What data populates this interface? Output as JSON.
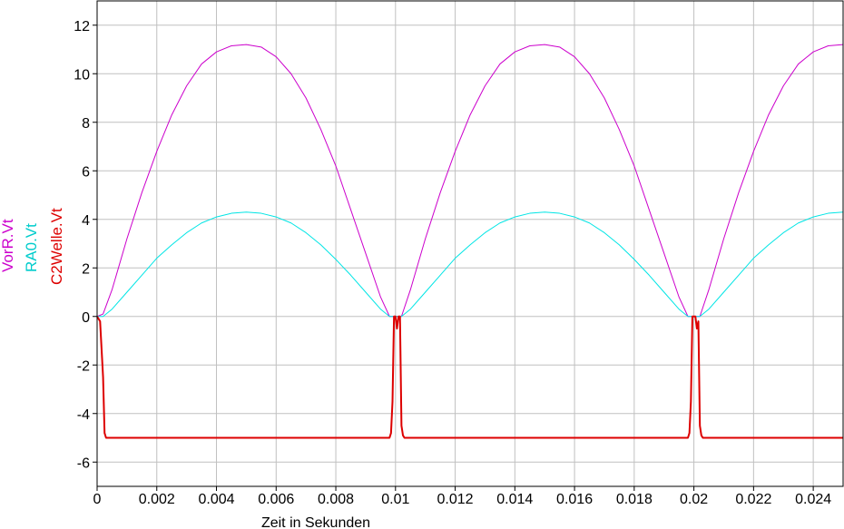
{
  "chart_data": {
    "type": "line",
    "title": "",
    "xlabel": "Zeit in Sekunden",
    "ylabels": [
      "VorR.Vt",
      "RA0.Vt",
      "C2Welle.Vt"
    ],
    "xlim": [
      0,
      0.025
    ],
    "ylim": [
      -7,
      13
    ],
    "grid": true,
    "xticks": [
      "0",
      "0.002",
      "0.004",
      "0.006",
      "0.008",
      "0.01",
      "0.012",
      "0.014",
      "0.016",
      "0.018",
      "0.02",
      "0.022",
      "0.024"
    ],
    "yticks": [
      "-6",
      "-4",
      "-2",
      "0",
      "2",
      "4",
      "6",
      "8",
      "10",
      "12"
    ],
    "series": [
      {
        "name": "VorR.Vt",
        "color": "#cc00cc",
        "x": [
          0,
          0.0002,
          0.0005,
          0.001,
          0.0015,
          0.002,
          0.0025,
          0.003,
          0.0035,
          0.004,
          0.0045,
          0.005,
          0.0055,
          0.006,
          0.0065,
          0.007,
          0.0075,
          0.008,
          0.0085,
          0.009,
          0.0095,
          0.0098,
          0.01,
          0.0102,
          0.0105,
          0.011,
          0.0115,
          0.012,
          0.0125,
          0.013,
          0.0135,
          0.014,
          0.0145,
          0.015,
          0.0155,
          0.016,
          0.0165,
          0.017,
          0.0175,
          0.018,
          0.0185,
          0.019,
          0.0195,
          0.0198,
          0.02,
          0.0202,
          0.0205,
          0.021,
          0.0215,
          0.022,
          0.0225,
          0.023,
          0.0235,
          0.024,
          0.0245,
          0.025
        ],
        "y": [
          0,
          0.1,
          1.1,
          3.2,
          5.1,
          6.8,
          8.3,
          9.5,
          10.4,
          10.9,
          11.15,
          11.2,
          11.1,
          10.7,
          10.0,
          9.0,
          7.7,
          6.2,
          4.4,
          2.6,
          0.8,
          0.0,
          0.0,
          0.0,
          1.1,
          3.2,
          5.1,
          6.8,
          8.3,
          9.5,
          10.4,
          10.9,
          11.15,
          11.2,
          11.1,
          10.7,
          10.0,
          9.0,
          7.7,
          6.2,
          4.4,
          2.6,
          0.8,
          0.0,
          0.0,
          0.0,
          1.1,
          3.2,
          5.1,
          6.8,
          8.3,
          9.5,
          10.4,
          10.9,
          11.15,
          11.2
        ]
      },
      {
        "name": "RA0.Vt",
        "color": "#00e5e5",
        "x": [
          0,
          0.0002,
          0.0005,
          0.001,
          0.0015,
          0.002,
          0.0025,
          0.003,
          0.0035,
          0.004,
          0.0045,
          0.005,
          0.0055,
          0.006,
          0.0065,
          0.007,
          0.0075,
          0.008,
          0.0085,
          0.009,
          0.0095,
          0.0098,
          0.01,
          0.0102,
          0.0105,
          0.011,
          0.0115,
          0.012,
          0.0125,
          0.013,
          0.0135,
          0.014,
          0.0145,
          0.015,
          0.0155,
          0.016,
          0.0165,
          0.017,
          0.0175,
          0.018,
          0.0185,
          0.019,
          0.0195,
          0.0198,
          0.02,
          0.0202,
          0.0205,
          0.021,
          0.0215,
          0.022,
          0.0225,
          0.023,
          0.0235,
          0.024,
          0.0245,
          0.025
        ],
        "y": [
          0,
          0.0,
          0.3,
          1.0,
          1.7,
          2.4,
          2.95,
          3.45,
          3.85,
          4.1,
          4.25,
          4.3,
          4.25,
          4.1,
          3.85,
          3.45,
          2.95,
          2.35,
          1.7,
          1.0,
          0.3,
          0.0,
          0.0,
          0.0,
          0.3,
          1.0,
          1.7,
          2.4,
          2.95,
          3.45,
          3.85,
          4.1,
          4.25,
          4.3,
          4.25,
          4.1,
          3.85,
          3.45,
          2.95,
          2.35,
          1.7,
          1.0,
          0.3,
          0.0,
          0.0,
          0.0,
          0.3,
          1.0,
          1.7,
          2.4,
          2.95,
          3.45,
          3.85,
          4.1,
          4.25,
          4.3
        ]
      },
      {
        "name": "C2Welle.Vt",
        "color": "#dd0000",
        "x": [
          0,
          0.0001,
          0.0002,
          0.00025,
          0.0003,
          0.0098,
          0.00985,
          0.0099,
          0.00995,
          0.01,
          0.01005,
          0.0101,
          0.01015,
          0.0102,
          0.01025,
          0.0103,
          0.0198,
          0.01985,
          0.0199,
          0.01995,
          0.02,
          0.02005,
          0.0201,
          0.02015,
          0.0202,
          0.02025,
          0.0203,
          0.025
        ],
        "y": [
          0,
          -0.2,
          -2.5,
          -4.8,
          -5.0,
          -5.0,
          -4.8,
          -3.5,
          0.0,
          0.0,
          -0.5,
          0.0,
          0.0,
          -4.5,
          -4.9,
          -5.0,
          -5.0,
          -4.8,
          -3.5,
          0.0,
          0.0,
          0.0,
          -0.5,
          -0.2,
          -4.5,
          -4.9,
          -5.0,
          -5.0
        ]
      }
    ]
  }
}
